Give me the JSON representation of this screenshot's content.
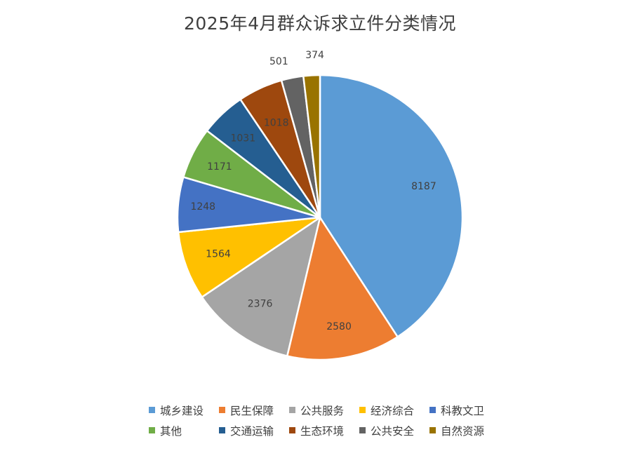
{
  "chart_data": {
    "type": "pie",
    "title": "2025年4月群众诉求立件分类情况",
    "categories": [
      "城乡建设",
      "民生保障",
      "公共服务",
      "经济综合",
      "科教文卫",
      "其他",
      "交通运输",
      "生态环境",
      "公共安全",
      "自然资源"
    ],
    "values": [
      8187,
      2580,
      2376,
      1564,
      1248,
      1171,
      1031,
      1018,
      501,
      374
    ],
    "labels": [
      "8187",
      "2580",
      "2376",
      "1564",
      "1248",
      "1171",
      "1031",
      "1018",
      "501",
      "374"
    ],
    "colors": [
      "#5B9BD5",
      "#ED7D31",
      "#A5A5A5",
      "#FFC000",
      "#4472C4",
      "#70AD47",
      "#255E91",
      "#9E480E",
      "#636363",
      "#997300"
    ],
    "start_angle": "12 o'clock",
    "direction": "clockwise",
    "legend_position": "bottom"
  }
}
